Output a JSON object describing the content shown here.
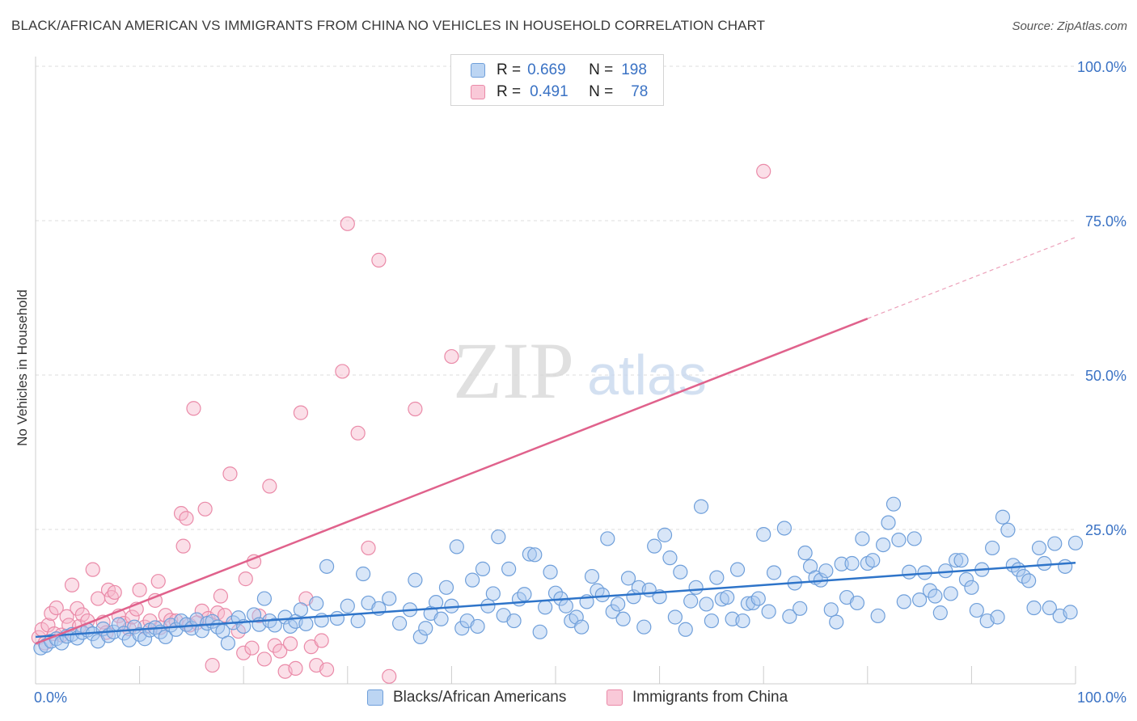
{
  "title": "BLACK/AFRICAN AMERICAN VS IMMIGRANTS FROM CHINA NO VEHICLES IN HOUSEHOLD CORRELATION CHART",
  "source": "Source: ZipAtlas.com",
  "watermark": {
    "zip": "ZIP",
    "atlas": "atlas"
  },
  "legend": {
    "r_label": "R =",
    "n_label": "N =",
    "rows": [
      {
        "r": "0.669",
        "n": "198"
      },
      {
        "r": "0.491",
        "n": "78"
      }
    ]
  },
  "colors": {
    "blue_fill": "#a9c8ef",
    "blue_stroke": "#6f9fda",
    "blue_line": "#2e74c9",
    "pink_fill": "#f6b8cb",
    "pink_stroke": "#ea8aa8",
    "pink_line": "#e0628c",
    "axis_text": "#3a72c4",
    "grid": "#dddddd"
  },
  "chart_data": {
    "type": "scatter",
    "title": "BLACK/AFRICAN AMERICAN VS IMMIGRANTS FROM CHINA NO VEHICLES IN HOUSEHOLD CORRELATION CHART",
    "xlabel": "",
    "ylabel": "No Vehicles in Household",
    "xlim": [
      0,
      100
    ],
    "ylim": [
      0,
      105
    ],
    "x_tick_labels": [
      "0.0%",
      "100.0%"
    ],
    "y_ticks": [
      25,
      50,
      75,
      100
    ],
    "y_tick_labels": [
      "25.0%",
      "50.0%",
      "75.0%",
      "100.0%"
    ],
    "grid": true,
    "legend_position": "top-center",
    "series": [
      {
        "name": "Blacks/African Americans",
        "color": "#6f9fda",
        "R": 0.669,
        "N": 198,
        "trend": {
          "x": [
            0,
            100
          ],
          "y": [
            7.6,
            19.6
          ],
          "dashed_from": null
        },
        "points": [
          [
            0.5,
            5.8
          ],
          [
            1,
            6.2
          ],
          [
            1.5,
            6.9
          ],
          [
            2,
            7.3
          ],
          [
            2.5,
            6.6
          ],
          [
            3,
            7.7
          ],
          [
            3.5,
            8.0
          ],
          [
            4,
            7.4
          ],
          [
            4.5,
            8.3
          ],
          [
            5,
            8.7
          ],
          [
            5.5,
            8.1
          ],
          [
            6,
            6.9
          ],
          [
            6.5,
            8.9
          ],
          [
            7,
            7.8
          ],
          [
            7.5,
            8.4
          ],
          [
            8,
            9.6
          ],
          [
            8.5,
            8.2
          ],
          [
            9,
            7.1
          ],
          [
            9.5,
            9.2
          ],
          [
            10,
            8.0
          ],
          [
            10.5,
            7.3
          ],
          [
            11,
            8.7
          ],
          [
            11.5,
            9.1
          ],
          [
            12,
            8.4
          ],
          [
            12.5,
            7.6
          ],
          [
            13,
            9.5
          ],
          [
            13.5,
            8.8
          ],
          [
            14,
            10.2
          ],
          [
            14.5,
            9.6
          ],
          [
            15,
            9.0
          ],
          [
            15.5,
            10.4
          ],
          [
            16,
            8.6
          ],
          [
            16.5,
            9.8
          ],
          [
            17,
            10.1
          ],
          [
            17.5,
            9.2
          ],
          [
            18,
            8.5
          ],
          [
            18.5,
            6.6
          ],
          [
            19,
            9.9
          ],
          [
            19.5,
            10.7
          ],
          [
            20,
            9.3
          ],
          [
            21,
            11.2
          ],
          [
            21.5,
            9.6
          ],
          [
            22,
            13.8
          ],
          [
            22.5,
            10.2
          ],
          [
            23,
            9.5
          ],
          [
            24,
            10.8
          ],
          [
            24.5,
            9.3
          ],
          [
            25,
            10.1
          ],
          [
            25.5,
            12.0
          ],
          [
            26,
            9.7
          ],
          [
            27,
            13.0
          ],
          [
            27.5,
            10.3
          ],
          [
            28,
            19.0
          ],
          [
            29,
            10.6
          ],
          [
            30,
            12.6
          ],
          [
            31,
            10.2
          ],
          [
            31.5,
            17.8
          ],
          [
            32,
            13.1
          ],
          [
            33,
            12.2
          ],
          [
            34,
            13.8
          ],
          [
            35,
            9.8
          ],
          [
            36,
            12.0
          ],
          [
            36.5,
            16.8
          ],
          [
            37,
            7.6
          ],
          [
            37.5,
            9.0
          ],
          [
            38,
            11.4
          ],
          [
            38.5,
            13.2
          ],
          [
            39,
            10.5
          ],
          [
            39.5,
            15.6
          ],
          [
            40,
            12.6
          ],
          [
            40.5,
            22.2
          ],
          [
            41,
            9.0
          ],
          [
            41.5,
            10.2
          ],
          [
            42,
            16.8
          ],
          [
            42.5,
            9.3
          ],
          [
            43,
            18.6
          ],
          [
            43.5,
            12.6
          ],
          [
            44,
            14.6
          ],
          [
            44.5,
            23.8
          ],
          [
            45,
            11.1
          ],
          [
            45.5,
            18.6
          ],
          [
            46,
            10.2
          ],
          [
            46.5,
            13.7
          ],
          [
            47,
            14.5
          ],
          [
            47.5,
            21.0
          ],
          [
            48,
            20.9
          ],
          [
            48.5,
            8.4
          ],
          [
            49,
            12.4
          ],
          [
            49.5,
            18.1
          ],
          [
            50,
            14.7
          ],
          [
            50.5,
            13.8
          ],
          [
            51,
            12.6
          ],
          [
            51.5,
            10.2
          ],
          [
            52,
            10.8
          ],
          [
            52.5,
            9.2
          ],
          [
            53,
            13.3
          ],
          [
            53.5,
            17.4
          ],
          [
            54,
            15.1
          ],
          [
            54.5,
            14.4
          ],
          [
            55,
            23.5
          ],
          [
            55.5,
            11.7
          ],
          [
            56,
            12.9
          ],
          [
            56.5,
            10.5
          ],
          [
            57,
            17.1
          ],
          [
            57.5,
            14.1
          ],
          [
            58,
            15.6
          ],
          [
            58.5,
            9.2
          ],
          [
            59,
            15.2
          ],
          [
            59.5,
            22.3
          ],
          [
            60,
            14.1
          ],
          [
            60.5,
            24.1
          ],
          [
            61,
            20.4
          ],
          [
            61.5,
            10.8
          ],
          [
            62,
            18.1
          ],
          [
            62.5,
            8.8
          ],
          [
            63,
            13.4
          ],
          [
            63.5,
            15.6
          ],
          [
            64,
            28.7
          ],
          [
            64.5,
            12.9
          ],
          [
            65,
            10.2
          ],
          [
            65.5,
            17.2
          ],
          [
            66,
            13.7
          ],
          [
            66.5,
            14.0
          ],
          [
            67,
            10.5
          ],
          [
            67.5,
            18.5
          ],
          [
            68,
            10.2
          ],
          [
            68.5,
            13.0
          ],
          [
            69,
            13.1
          ],
          [
            69.5,
            13.8
          ],
          [
            70,
            24.2
          ],
          [
            70.5,
            11.7
          ],
          [
            71,
            18.0
          ],
          [
            72,
            25.2
          ],
          [
            72.5,
            10.9
          ],
          [
            73,
            16.3
          ],
          [
            73.5,
            12.2
          ],
          [
            74,
            21.2
          ],
          [
            74.5,
            19.0
          ],
          [
            75,
            17.2
          ],
          [
            75.5,
            16.8
          ],
          [
            76,
            18.3
          ],
          [
            76.5,
            12.0
          ],
          [
            77,
            10.0
          ],
          [
            77.5,
            19.4
          ],
          [
            78,
            14.0
          ],
          [
            78.5,
            19.5
          ],
          [
            79,
            13.1
          ],
          [
            79.5,
            23.5
          ],
          [
            80,
            19.5
          ],
          [
            80.5,
            20.0
          ],
          [
            81,
            11.0
          ],
          [
            81.5,
            22.5
          ],
          [
            82,
            26.1
          ],
          [
            82.5,
            29.1
          ],
          [
            83,
            23.3
          ],
          [
            83.5,
            13.3
          ],
          [
            84,
            18.1
          ],
          [
            84.5,
            23.5
          ],
          [
            85,
            13.6
          ],
          [
            85.5,
            18.0
          ],
          [
            86,
            15.1
          ],
          [
            86.5,
            14.2
          ],
          [
            87,
            11.5
          ],
          [
            87.5,
            18.3
          ],
          [
            88,
            14.6
          ],
          [
            88.5,
            20.0
          ],
          [
            89,
            20.0
          ],
          [
            89.5,
            16.9
          ],
          [
            90,
            15.6
          ],
          [
            90.5,
            11.9
          ],
          [
            91,
            18.5
          ],
          [
            91.5,
            10.2
          ],
          [
            92,
            22.0
          ],
          [
            92.5,
            10.8
          ],
          [
            93,
            27.0
          ],
          [
            93.5,
            24.9
          ],
          [
            94,
            19.2
          ],
          [
            94.5,
            18.5
          ],
          [
            95,
            17.4
          ],
          [
            95.5,
            16.7
          ],
          [
            96,
            12.3
          ],
          [
            96.5,
            22.0
          ],
          [
            97,
            19.5
          ],
          [
            97.5,
            12.3
          ],
          [
            98,
            22.7
          ],
          [
            98.5,
            11.0
          ],
          [
            99,
            19.0
          ],
          [
            99.5,
            11.6
          ],
          [
            100,
            22.8
          ]
        ]
      },
      {
        "name": "Immigrants from China",
        "color": "#ea8aa8",
        "R": 0.491,
        "N": 78,
        "trend": {
          "x": [
            0,
            100
          ],
          "y": [
            6.5,
            72.3
          ],
          "dashed_from": 80
        },
        "points": [
          [
            0.3,
            7.5
          ],
          [
            0.6,
            8.8
          ],
          [
            0.9,
            6.6
          ],
          [
            1.2,
            9.5
          ],
          [
            1.5,
            11.4
          ],
          [
            1.8,
            8.1
          ],
          [
            2,
            12.3
          ],
          [
            2.5,
            7.9
          ],
          [
            3,
            10.9
          ],
          [
            3.2,
            9.5
          ],
          [
            3.5,
            16.0
          ],
          [
            4,
            12.2
          ],
          [
            4.2,
            9.3
          ],
          [
            4.5,
            11.2
          ],
          [
            5,
            10.2
          ],
          [
            5.5,
            18.5
          ],
          [
            6,
            13.8
          ],
          [
            6.5,
            10.0
          ],
          [
            6.8,
            8.3
          ],
          [
            7,
            15.2
          ],
          [
            7.3,
            14.0
          ],
          [
            7.6,
            14.8
          ],
          [
            8,
            11.0
          ],
          [
            8.5,
            9.8
          ],
          [
            9,
            8.9
          ],
          [
            9.3,
            10.8
          ],
          [
            9.7,
            12.1
          ],
          [
            10,
            15.2
          ],
          [
            10.5,
            9.2
          ],
          [
            11,
            10.2
          ],
          [
            11.5,
            13.5
          ],
          [
            11.8,
            16.6
          ],
          [
            12,
            9.1
          ],
          [
            12.5,
            11.1
          ],
          [
            13,
            10.3
          ],
          [
            13.5,
            10.2
          ],
          [
            14,
            27.6
          ],
          [
            14.2,
            22.3
          ],
          [
            14.5,
            26.8
          ],
          [
            14.8,
            9.5
          ],
          [
            15.2,
            44.6
          ],
          [
            15.5,
            9.9
          ],
          [
            16,
            11.8
          ],
          [
            16.3,
            28.3
          ],
          [
            16.6,
            10.6
          ],
          [
            17,
            3.0
          ],
          [
            17.5,
            11.5
          ],
          [
            17.8,
            14.2
          ],
          [
            18.2,
            11.1
          ],
          [
            18.7,
            34.0
          ],
          [
            19.5,
            8.5
          ],
          [
            20,
            5.0
          ],
          [
            20.2,
            17.0
          ],
          [
            20.8,
            5.8
          ],
          [
            21,
            19.8
          ],
          [
            21.5,
            11.0
          ],
          [
            22,
            4.0
          ],
          [
            22.5,
            32.0
          ],
          [
            23,
            6.2
          ],
          [
            23.5,
            5.3
          ],
          [
            24,
            2.0
          ],
          [
            24.5,
            6.5
          ],
          [
            25,
            2.5
          ],
          [
            25.5,
            43.9
          ],
          [
            26,
            13.8
          ],
          [
            26.5,
            6.0
          ],
          [
            27,
            3.0
          ],
          [
            27.5,
            7.0
          ],
          [
            28,
            2.3
          ],
          [
            29.5,
            50.6
          ],
          [
            30,
            74.5
          ],
          [
            31,
            40.6
          ],
          [
            32,
            22.0
          ],
          [
            33,
            68.6
          ],
          [
            34,
            1.2
          ],
          [
            36.5,
            44.5
          ],
          [
            40,
            53.0
          ],
          [
            70,
            83.0
          ]
        ]
      }
    ]
  },
  "bottom_legend": [
    "Blacks/African Americans",
    "Immigrants from China"
  ]
}
